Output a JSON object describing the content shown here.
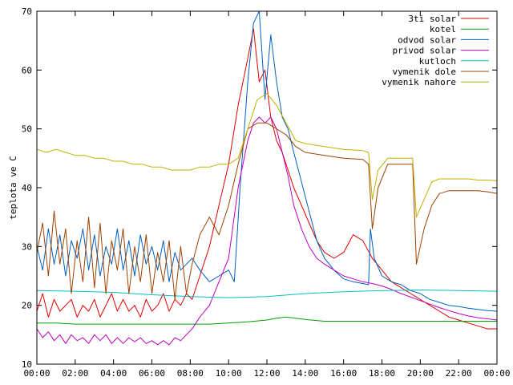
{
  "chart_data": {
    "type": "line",
    "title": "",
    "xlabel": "",
    "ylabel": "teplota ve C",
    "xlim": [
      0,
      24
    ],
    "ylim": [
      10,
      70
    ],
    "xticks": [
      0,
      2,
      4,
      6,
      8,
      10,
      12,
      14,
      16,
      18,
      20,
      22,
      24
    ],
    "xtick_labels": [
      "00:00",
      "02:00",
      "04:00",
      "06:00",
      "08:00",
      "10:00",
      "12:00",
      "14:00",
      "16:00",
      "18:00",
      "20:00",
      "22:00",
      "00:00"
    ],
    "yticks": [
      10,
      20,
      30,
      40,
      50,
      60,
      70
    ],
    "ytick_labels": [
      "10",
      "20",
      "30",
      "40",
      "50",
      "60",
      "70"
    ],
    "grid": false,
    "legend_position": "top-right",
    "series": [
      {
        "name": "3ti solar",
        "color": "#e00000",
        "x": [
          0,
          0.3,
          0.6,
          0.9,
          1.2,
          1.5,
          1.8,
          2.1,
          2.4,
          2.7,
          3,
          3.3,
          3.6,
          3.9,
          4.2,
          4.5,
          4.8,
          5.1,
          5.4,
          5.7,
          6,
          6.3,
          6.6,
          6.9,
          7.2,
          7.5,
          7.8,
          8.1,
          8.5,
          9,
          9.5,
          10,
          10.5,
          11,
          11.3,
          11.6,
          11.9,
          12.2,
          12.5,
          12.8,
          13.1,
          13.4,
          13.8,
          14.2,
          14.6,
          15,
          15.5,
          16,
          16.5,
          17,
          17.5,
          18,
          18.5,
          19,
          19.5,
          20,
          20.5,
          21,
          21.5,
          22,
          22.5,
          23,
          23.5,
          24
        ],
        "y": [
          19,
          22,
          18,
          21,
          19,
          20,
          21,
          18,
          20,
          19,
          21,
          18,
          20,
          22,
          19,
          21,
          19,
          20,
          18,
          21,
          19,
          20,
          22,
          19,
          21,
          20,
          22,
          21,
          25,
          30,
          37,
          44,
          54,
          62,
          67,
          58,
          60,
          52,
          48,
          46,
          43,
          40,
          37,
          34,
          31,
          29,
          28,
          29,
          32,
          31,
          28,
          26,
          24,
          23,
          22,
          21,
          20,
          19,
          18,
          17.5,
          17,
          16.5,
          16,
          16
        ]
      },
      {
        "name": "kotel",
        "color": "#00a000",
        "x": [
          0,
          1,
          2,
          3,
          4,
          5,
          6,
          7,
          8,
          9,
          10,
          11,
          12,
          12.5,
          13,
          13.5,
          14,
          15,
          16,
          17,
          18,
          19,
          20,
          21,
          22,
          23,
          24
        ],
        "y": [
          17,
          17,
          16.8,
          16.8,
          16.8,
          16.8,
          16.8,
          16.8,
          16.8,
          16.8,
          17,
          17.2,
          17.5,
          17.8,
          18,
          17.8,
          17.6,
          17.3,
          17.3,
          17.3,
          17.3,
          17.3,
          17.3,
          17.3,
          17.3,
          17.3,
          17.3
        ]
      },
      {
        "name": "odvod solar",
        "color": "#0060c0",
        "x": [
          0,
          0.3,
          0.6,
          0.9,
          1.2,
          1.5,
          1.8,
          2.1,
          2.4,
          2.7,
          3,
          3.3,
          3.6,
          3.9,
          4.2,
          4.5,
          4.8,
          5.1,
          5.4,
          5.7,
          6,
          6.3,
          6.6,
          6.9,
          7.2,
          7.5,
          7.8,
          8.1,
          8.5,
          9,
          9.5,
          10,
          10.3,
          10.6,
          11,
          11.3,
          11.6,
          11.9,
          12.2,
          12.5,
          12.8,
          13.1,
          13.4,
          13.8,
          14.2,
          14.6,
          15,
          15.5,
          16,
          16.5,
          17,
          17.3,
          17.4,
          17.6,
          18,
          18.5,
          19,
          19.5,
          20,
          20.5,
          21,
          21.5,
          22,
          22.5,
          23,
          23.5,
          24
        ],
        "y": [
          30,
          26,
          33,
          27,
          32,
          25,
          31,
          28,
          33,
          26,
          32,
          25,
          30,
          27,
          33,
          26,
          31,
          25,
          32,
          27,
          30,
          26,
          31,
          24,
          29,
          26,
          27,
          28,
          26,
          24,
          25,
          26,
          24,
          40,
          58,
          68,
          70,
          55,
          66,
          58,
          52,
          50,
          46,
          41,
          36,
          31,
          28,
          26,
          24.5,
          24,
          23.7,
          23.5,
          33,
          28,
          25,
          24,
          23.5,
          22.5,
          22,
          21,
          20.5,
          20,
          19.8,
          19.5,
          19.3,
          19.1,
          19
        ]
      },
      {
        "name": "privod solar",
        "color": "#c000c0",
        "x": [
          0,
          0.3,
          0.6,
          0.9,
          1.2,
          1.5,
          1.8,
          2.1,
          2.4,
          2.7,
          3,
          3.3,
          3.6,
          3.9,
          4.2,
          4.5,
          4.8,
          5.1,
          5.4,
          5.7,
          6,
          6.3,
          6.6,
          6.9,
          7.2,
          7.5,
          7.8,
          8.1,
          8.5,
          9,
          9.5,
          10,
          10.5,
          11,
          11.3,
          11.6,
          11.9,
          12.2,
          12.5,
          12.8,
          13.1,
          13.4,
          13.8,
          14.2,
          14.6,
          15,
          15.5,
          16,
          16.5,
          17,
          17.5,
          18,
          18.5,
          19,
          19.5,
          20,
          20.5,
          21,
          21.5,
          22,
          22.5,
          23,
          23.5,
          24
        ],
        "y": [
          16,
          14.5,
          15.5,
          14,
          15,
          13.5,
          15,
          14,
          14.5,
          13.5,
          15,
          14,
          15,
          13.5,
          14.5,
          13.5,
          14.5,
          13.8,
          14.5,
          13.5,
          14,
          13.3,
          14,
          13.3,
          14.5,
          14,
          15,
          16,
          18,
          20,
          24,
          28,
          40,
          48,
          51,
          52,
          51,
          52,
          50,
          46,
          42,
          37,
          33,
          30,
          28,
          27,
          26,
          25,
          24.5,
          24,
          23.7,
          23.3,
          22.7,
          22,
          21.4,
          20.8,
          20.2,
          19.6,
          19.1,
          18.6,
          18.2,
          17.9,
          17.7,
          17.5
        ]
      },
      {
        "name": "kutloch",
        "color": "#00c0c0",
        "x": [
          0,
          2,
          4,
          6,
          8,
          10,
          12,
          14,
          16,
          18,
          20,
          22,
          24
        ],
        "y": [
          22.5,
          22.4,
          22.2,
          21.8,
          21.5,
          21.3,
          21.5,
          22,
          22.3,
          22.5,
          22.6,
          22.5,
          22.4
        ]
      },
      {
        "name": "vymenik dole",
        "color": "#a04000",
        "x": [
          0,
          0.3,
          0.6,
          0.9,
          1.2,
          1.5,
          1.8,
          2.1,
          2.4,
          2.7,
          3,
          3.3,
          3.6,
          3.9,
          4.2,
          4.5,
          4.8,
          5.1,
          5.4,
          5.7,
          6,
          6.3,
          6.6,
          6.9,
          7.2,
          7.5,
          7.8,
          8.1,
          8.5,
          9,
          9.5,
          10,
          10.5,
          11,
          11.5,
          12,
          12.5,
          13,
          13.5,
          14,
          15,
          16,
          17,
          17.3,
          17.5,
          17.8,
          18.3,
          18.8,
          19.3,
          19.6,
          19.8,
          20.2,
          20.6,
          21,
          21.5,
          22,
          22.5,
          23,
          23.5,
          24
        ],
        "y": [
          29,
          34,
          25,
          36,
          27,
          33,
          22,
          31,
          24,
          35,
          23,
          34,
          22,
          31,
          26,
          33,
          22,
          30,
          24,
          32,
          22,
          29,
          24,
          31,
          21,
          30,
          22,
          27,
          32,
          35,
          32,
          37,
          44,
          50,
          51,
          51,
          50,
          49,
          47,
          46,
          45.5,
          45,
          44.8,
          44,
          33,
          40,
          44,
          44,
          44,
          44,
          27,
          33,
          37,
          39,
          39.5,
          39.5,
          39.5,
          39.5,
          39.3,
          39
        ]
      },
      {
        "name": "vymenik nahore",
        "color": "#c0b000",
        "x": [
          0,
          0.5,
          1,
          1.5,
          2,
          2.5,
          3,
          3.5,
          4,
          4.5,
          5,
          5.5,
          6,
          6.5,
          7,
          7.5,
          8,
          8.5,
          9,
          9.5,
          10,
          10.5,
          11,
          11.5,
          12,
          12.5,
          13,
          13.5,
          14,
          15,
          16,
          17,
          17.3,
          17.5,
          17.8,
          18.3,
          18.8,
          19.3,
          19.6,
          19.8,
          20.2,
          20.6,
          21,
          21.5,
          22,
          22.5,
          23,
          23.5,
          24
        ],
        "y": [
          46.5,
          46,
          46.5,
          46,
          45.5,
          45.5,
          45,
          45,
          44.5,
          44.5,
          44,
          44,
          43.5,
          43.5,
          43,
          43,
          43,
          43.5,
          43.5,
          44,
          44,
          45,
          50,
          55,
          56,
          54,
          51,
          48,
          47.5,
          47,
          46.5,
          46.3,
          46,
          38,
          43,
          45,
          45,
          45,
          45,
          35,
          38,
          41,
          41.5,
          41.5,
          41.5,
          41.5,
          41.3,
          41.3,
          41.2
        ]
      }
    ]
  }
}
